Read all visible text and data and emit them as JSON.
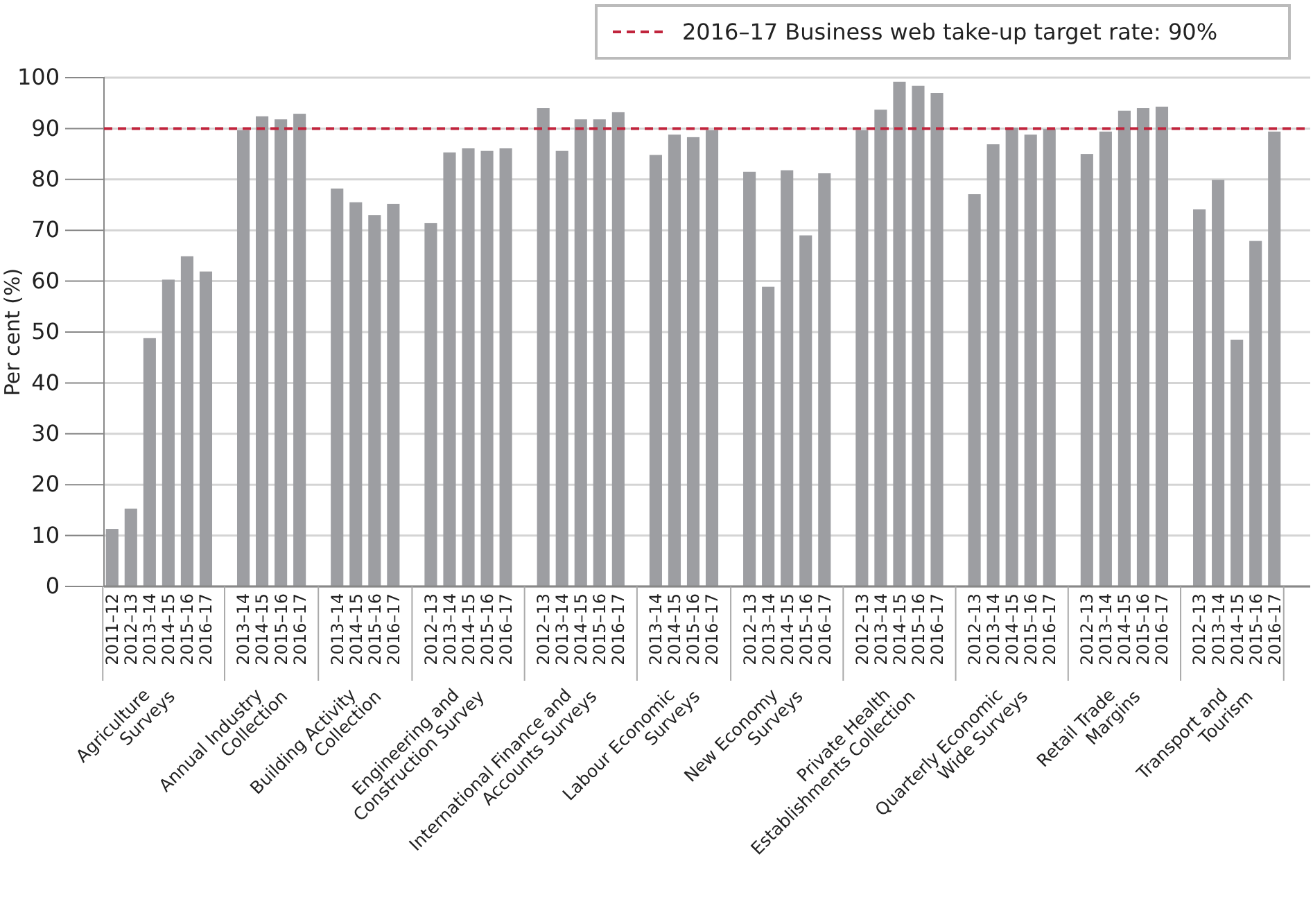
{
  "chart_data": {
    "type": "bar",
    "ylabel": "Per cent (%)",
    "categories": [
      "2011–12",
      "2012–13",
      "2013–14",
      "2014–15",
      "2015–16",
      "2016–17",
      null,
      "2013–14",
      "2014–15",
      "2015–16",
      "2016–17",
      null,
      "2013–14",
      "2014–15",
      "2015–16",
      "2016–17",
      null,
      "2012–13",
      "2013–14",
      "2014–15",
      "2015–16",
      "2016–17",
      null,
      "2012–13",
      "2013–14",
      "2014–15",
      "2015–16",
      "2016–17",
      null,
      "2013–14",
      "2014–15",
      "2015–16",
      "2016–17",
      null,
      "2012–13",
      "2013–14",
      "2014–15",
      "2015–16",
      "2016–17",
      null,
      "2012–13",
      "2013–14",
      "2014–15",
      "2015–16",
      "2016–17",
      null,
      "2012–13",
      "2013–14",
      "2014–15",
      "2015–16",
      "2016–17",
      null,
      "2012–13",
      "2013–14",
      "2014–15",
      "2015–16",
      "2016–17",
      null,
      "2012–13",
      "2013–14",
      "2014–15",
      "2015–16",
      "2016–17"
    ],
    "values": [
      11.3,
      15.3,
      48.8,
      60.3,
      64.9,
      61.9,
      null,
      89.7,
      92.4,
      91.8,
      92.9,
      null,
      78.2,
      75.5,
      73.0,
      75.2,
      null,
      71.4,
      85.3,
      86.1,
      85.6,
      86.1,
      null,
      94.0,
      85.6,
      91.8,
      91.8,
      93.2,
      null,
      84.8,
      88.8,
      88.3,
      89.7,
      null,
      81.5,
      58.9,
      81.8,
      69.0,
      81.2,
      null,
      89.7,
      93.7,
      99.2,
      98.4,
      97.0,
      null,
      77.1,
      86.9,
      90.2,
      88.8,
      89.9,
      null,
      85.0,
      89.4,
      93.5,
      94.0,
      94.3,
      null,
      74.1,
      79.9,
      48.5,
      67.9,
      89.4
    ],
    "color": "#9d9ea2",
    "annotations": [
      "Agriculture\nSurveys",
      "Annual Industry\nCollection",
      "Building Activity\nCollection",
      "Engineering and\nConstruction Survey",
      "International Finance and\nAccounts Surveys",
      "Labour Economic\nSurveys",
      "New Economy\nSurveys",
      "Private Health\nEstablishments Collection",
      "Quarterly Economic\nWide Surveys",
      "Retail Trade\nMargins",
      "Transport and\nTourism"
    ],
    "ylim": [
      0,
      100
    ],
    "yticks": [
      0,
      10,
      20,
      30,
      40,
      50,
      60,
      70,
      80,
      90,
      100
    ],
    "grid": "y",
    "ref_lines": [
      {
        "axis": "y",
        "value": 90,
        "label": "2016–17 Business web take-up target rate: 90%",
        "color": "#c0243c",
        "line_style": "dashed"
      }
    ],
    "legend": "top right"
  }
}
